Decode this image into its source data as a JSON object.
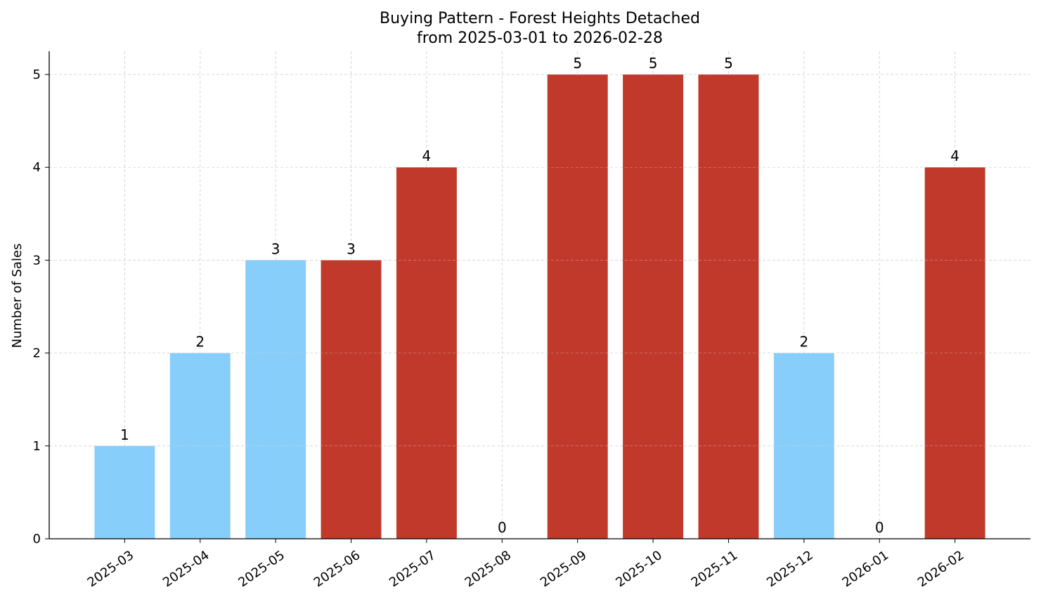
{
  "chart_data": {
    "type": "bar",
    "title": "Buying Pattern - Forest Heights Detached",
    "subtitle": "from 2025-03-01 to 2026-02-28",
    "xlabel": "",
    "ylabel": "Number of Sales",
    "categories": [
      "2025-03",
      "2025-04",
      "2025-05",
      "2025-06",
      "2025-07",
      "2025-08",
      "2025-09",
      "2025-10",
      "2025-11",
      "2025-12",
      "2026-01",
      "2026-02"
    ],
    "values": [
      1,
      2,
      3,
      3,
      4,
      0,
      5,
      5,
      5,
      2,
      0,
      4
    ],
    "highlight": [
      false,
      false,
      false,
      true,
      true,
      true,
      true,
      true,
      true,
      false,
      false,
      true
    ],
    "ylim": [
      0,
      5.25
    ],
    "yticks": [
      0,
      1,
      2,
      3,
      4,
      5
    ],
    "grid": true,
    "colors": {
      "normal": "#87CEFA",
      "highlight": "#C0392B"
    }
  }
}
